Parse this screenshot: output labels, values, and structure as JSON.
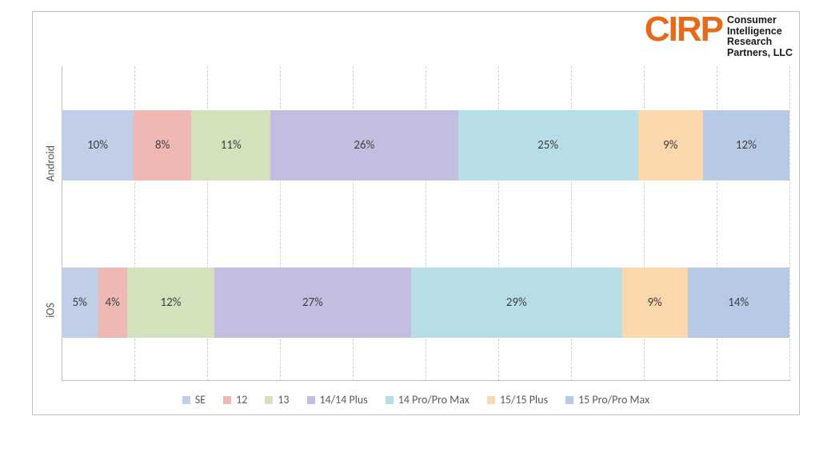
{
  "logo": {
    "mark": "CIRP",
    "mark_color": "#e8691a",
    "line1": "Consumer",
    "line2": "Intelligence",
    "line3": "Research",
    "line4": "Partners, LLC",
    "text_color": "#1a1a1a"
  },
  "chart": {
    "type": "stacked-bar-horizontal-100pct",
    "background_color": "#ffffff",
    "border_color": "#bfbfbf",
    "grid_color": "#cfcfcf",
    "label_color": "#595959",
    "label_fontsize": 14,
    "data_label_fontsize": 15,
    "xlim": [
      0,
      100
    ],
    "xtick_step": 10,
    "series": [
      {
        "name": "SE",
        "color": "#c0cee8"
      },
      {
        "name": "12",
        "color": "#efb8b4"
      },
      {
        "name": "13",
        "color": "#d3e2bd"
      },
      {
        "name": "14/14 Plus",
        "color": "#c3bee0"
      },
      {
        "name": "14 Pro/Pro Max",
        "color": "#b6dee4"
      },
      {
        "name": "15/15 Plus",
        "color": "#fad7ac"
      },
      {
        "name": "15 Pro/Pro Max",
        "color": "#b8c9e6"
      }
    ],
    "categories": [
      {
        "label": "Android",
        "values": [
          10,
          8,
          11,
          26,
          25,
          9,
          12
        ],
        "display": [
          "10%",
          "8%",
          "11%",
          "26%",
          "25%",
          "9%",
          "12%"
        ]
      },
      {
        "label": "iOS",
        "values": [
          5,
          4,
          12,
          27,
          29,
          9,
          14
        ],
        "display": [
          "5%",
          "4%",
          "12%",
          "27%",
          "29%",
          "9%",
          "14%"
        ]
      }
    ]
  }
}
